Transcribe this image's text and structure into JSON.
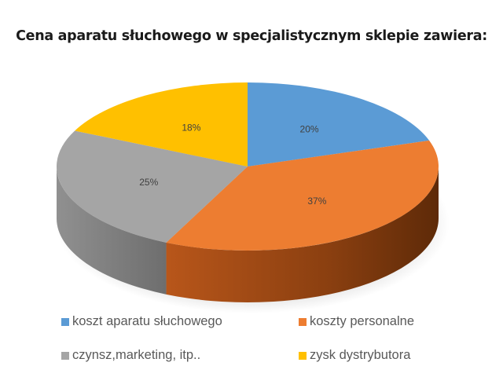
{
  "title": "Cena aparatu słuchowego w specjalistycznym sklepie zawiera:",
  "chart_data": {
    "type": "pie",
    "style": "3d",
    "title": "Cena aparatu słuchowego w specjalistycznym sklepie zawiera:",
    "categories": [
      "koszt aparatu słuchowego",
      "koszty personalne",
      "czynsz,marketing, itp..",
      "zysk dystrybutora"
    ],
    "values": [
      20,
      37,
      25,
      18
    ],
    "labels": [
      "20%",
      "37%",
      "25%",
      "18%"
    ],
    "colors": [
      "#5B9BD5",
      "#ED7D31",
      "#A5A5A5",
      "#FFC000"
    ],
    "legend_position": "bottom"
  },
  "legend": [
    {
      "label": "koszt aparatu słuchowego",
      "color": "#5B9BD5"
    },
    {
      "label": "koszty personalne",
      "color": "#ED7D31"
    },
    {
      "label": "czynsz,marketing, itp..",
      "color": "#A5A5A5"
    },
    {
      "label": "zysk dystrybutora",
      "color": "#FFC000"
    }
  ]
}
